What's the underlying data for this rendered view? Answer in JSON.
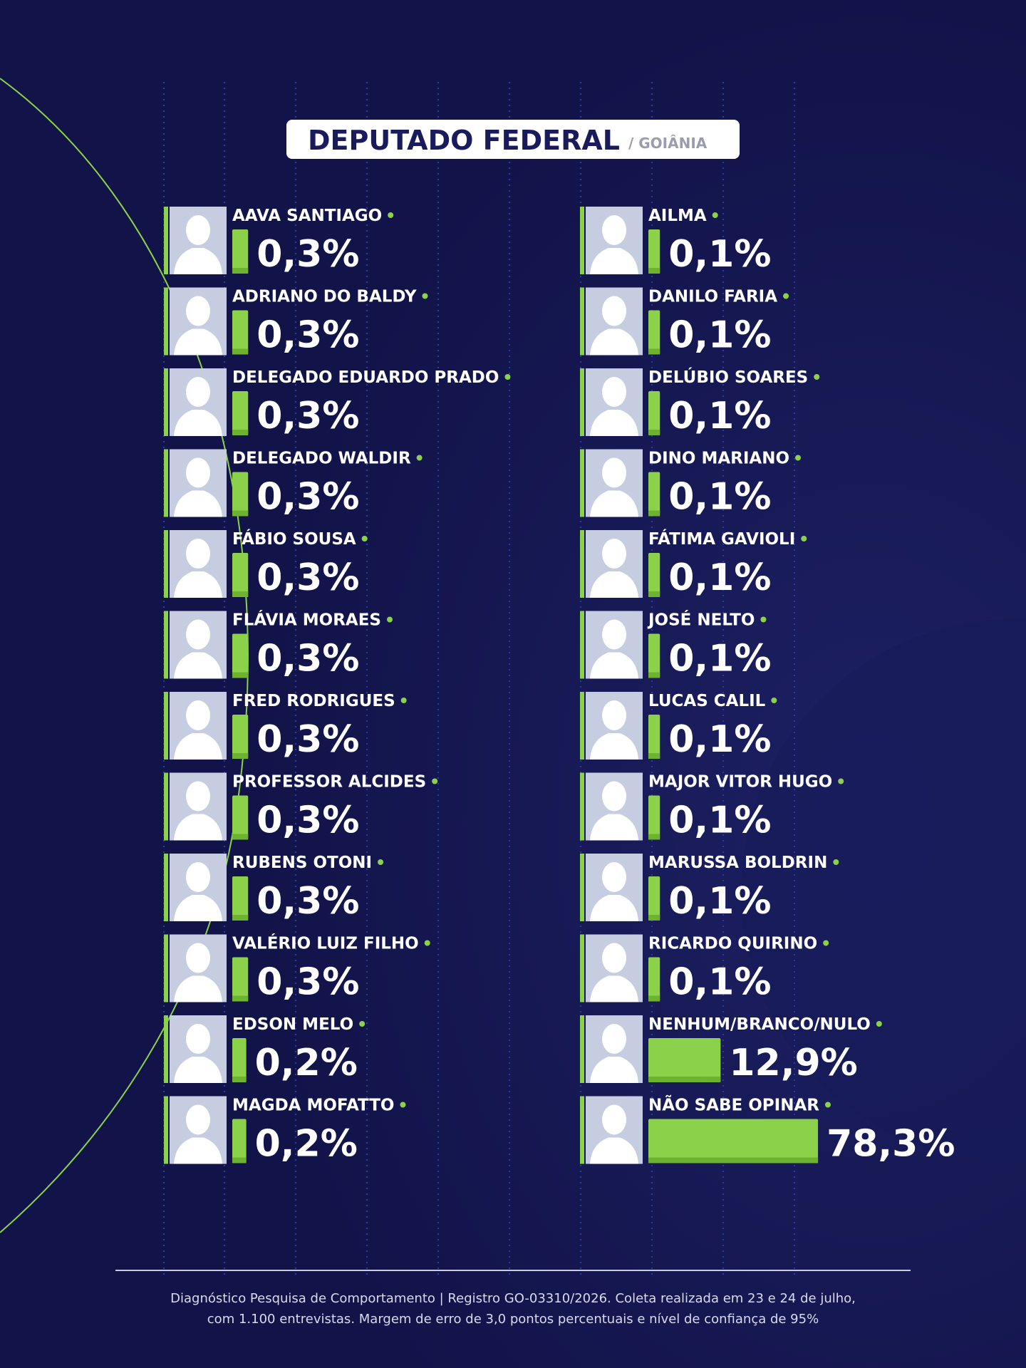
{
  "chart_data": {
    "type": "bar",
    "title": "DEPUTADO FEDERAL",
    "subtitle": "/ GOIÂNIA",
    "color": "#8bd24a",
    "categories": [
      "AAVA SANTIAGO",
      "ADRIANO DO BALDY",
      "DELEGADO EDUARDO PRADO",
      "DELEGADO WALDIR",
      "FÁBIO SOUSA",
      "FLÁVIA MORAES",
      "FRED RODRIGUES",
      "PROFESSOR ALCIDES",
      "RUBENS OTONI",
      "VALÉRIO LUIZ FILHO",
      "EDSON MELO",
      "MAGDA MOFATTO",
      "AILMA",
      "DANILO FARIA",
      "DELÚBIO SOARES",
      "DINO MARIANO",
      "FÁTIMA GAVIOLI",
      "JOSÉ NELTO",
      "LUCAS CALIL",
      "MAJOR VITOR HUGO",
      "MARUSSA BOLDRIN",
      "RICARDO QUIRINO",
      "NENHUM/BRANCO/NULO",
      "NÃO SABE OPINAR"
    ],
    "values": [
      0.3,
      0.3,
      0.3,
      0.3,
      0.3,
      0.3,
      0.3,
      0.3,
      0.3,
      0.3,
      0.2,
      0.2,
      0.1,
      0.1,
      0.1,
      0.1,
      0.1,
      0.1,
      0.1,
      0.1,
      0.1,
      0.1,
      12.9,
      78.3
    ],
    "value_labels": [
      "0,3%",
      "0,3%",
      "0,3%",
      "0,3%",
      "0,3%",
      "0,3%",
      "0,3%",
      "0,3%",
      "0,3%",
      "0,3%",
      "0,2%",
      "0,2%",
      "0,1%",
      "0,1%",
      "0,1%",
      "0,1%",
      "0,1%",
      "0,1%",
      "0,1%",
      "0,1%",
      "0,1%",
      "0,1%",
      "12,9%",
      "78,3%"
    ],
    "footnote": [
      "Diagnóstico Pesquisa de Comportamento | Registro GO-03310/2026. Coleta realizada em 23 e 24 de julho,",
      "com 1.100 entrevistas. Margem de erro de 3,0 pontos percentuais e nível de confiança de 95%"
    ]
  }
}
